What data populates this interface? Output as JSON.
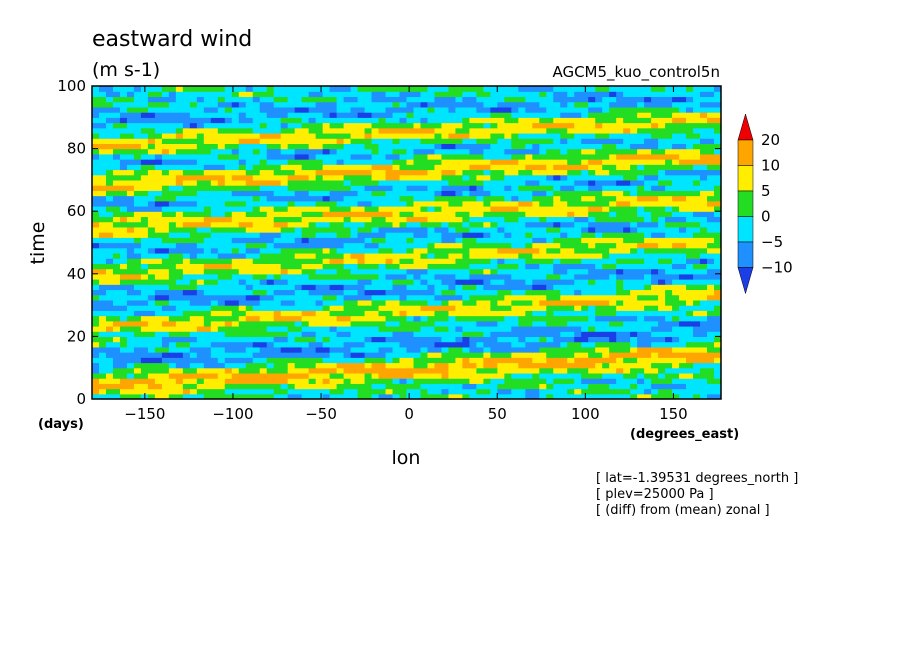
{
  "chart_data": {
    "type": "heatmap",
    "title": "eastward wind",
    "units": "(m s-1)",
    "model_label": "AGCM5_kuo_control5n",
    "xlabel": "lon",
    "x_units": "(degrees_east)",
    "ylabel": "time",
    "y_units": "(days)",
    "xlim": [
      -180,
      177
    ],
    "ylim": [
      0,
      100
    ],
    "x_ticks": [
      -150,
      -100,
      -50,
      0,
      50,
      100,
      150
    ],
    "y_ticks": [
      0,
      20,
      40,
      60,
      80,
      100
    ],
    "x_tick_labels": [
      "−150",
      "−100",
      "−50",
      "0",
      "50",
      "100",
      "150"
    ],
    "y_tick_labels": [
      "0",
      "20",
      "40",
      "60",
      "80",
      "100"
    ],
    "colorbar": {
      "levels": [
        -10,
        -5,
        0,
        5,
        10,
        20
      ],
      "labels": [
        "−10",
        "−5",
        "0",
        "5",
        "10",
        "20"
      ],
      "colors": [
        "#1a3fe6",
        "#1e90ff",
        "#00e5ff",
        "#22dd22",
        "#ffee00",
        "#ffa500",
        "#ee0000"
      ]
    },
    "bands": [
      {
        "t0": 7,
        "t1": 11.5,
        "slope": 0.028,
        "amp": 13
      },
      {
        "t0": 26,
        "t1": 29,
        "slope": 0.03,
        "amp": 10
      },
      {
        "t0": 43,
        "t1": 46,
        "slope": 0.03,
        "amp": 9
      },
      {
        "t0": 57,
        "t1": 62,
        "slope": 0.025,
        "amp": 10
      },
      {
        "t0": 71,
        "t1": 75,
        "slope": 0.025,
        "amp": 12
      },
      {
        "t0": 83,
        "t1": 88,
        "slope": 0.022,
        "amp": 11
      }
    ],
    "grid": false,
    "legend": "right"
  },
  "annotations": [
    "[ lat=-1.39531 degrees_north ]",
    "[ plev=25000 Pa ]",
    "[ (diff) from (mean) zonal ]"
  ]
}
